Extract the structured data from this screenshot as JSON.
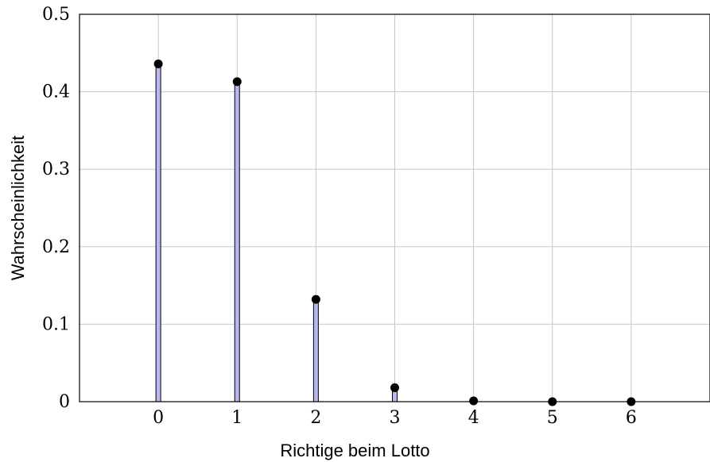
{
  "chart_data": {
    "type": "bar",
    "categories": [
      "0",
      "1",
      "2",
      "3",
      "4",
      "5",
      "6"
    ],
    "x": [
      0,
      1,
      2,
      3,
      4,
      5,
      6
    ],
    "values": [
      0.436,
      0.413,
      0.132,
      0.018,
      0.001,
      0.0,
      0.0
    ],
    "xlabel": "Richtige beim Lotto",
    "ylabel": "Wahrscheinlichkeit",
    "xlim": [
      -1,
      7
    ],
    "ylim": [
      0,
      0.5
    ],
    "yticks": [
      0,
      0.1,
      0.2,
      0.3,
      0.4,
      0.5
    ],
    "ytick_labels": [
      "0",
      "0.1",
      "0.2",
      "0.3",
      "0.4",
      "0.5"
    ],
    "xtick_labels": [
      "0",
      "1",
      "2",
      "3",
      "4",
      "5",
      "6"
    ],
    "grid": true,
    "bar_color": "#b8b8ee",
    "marker_color": "#000000"
  }
}
